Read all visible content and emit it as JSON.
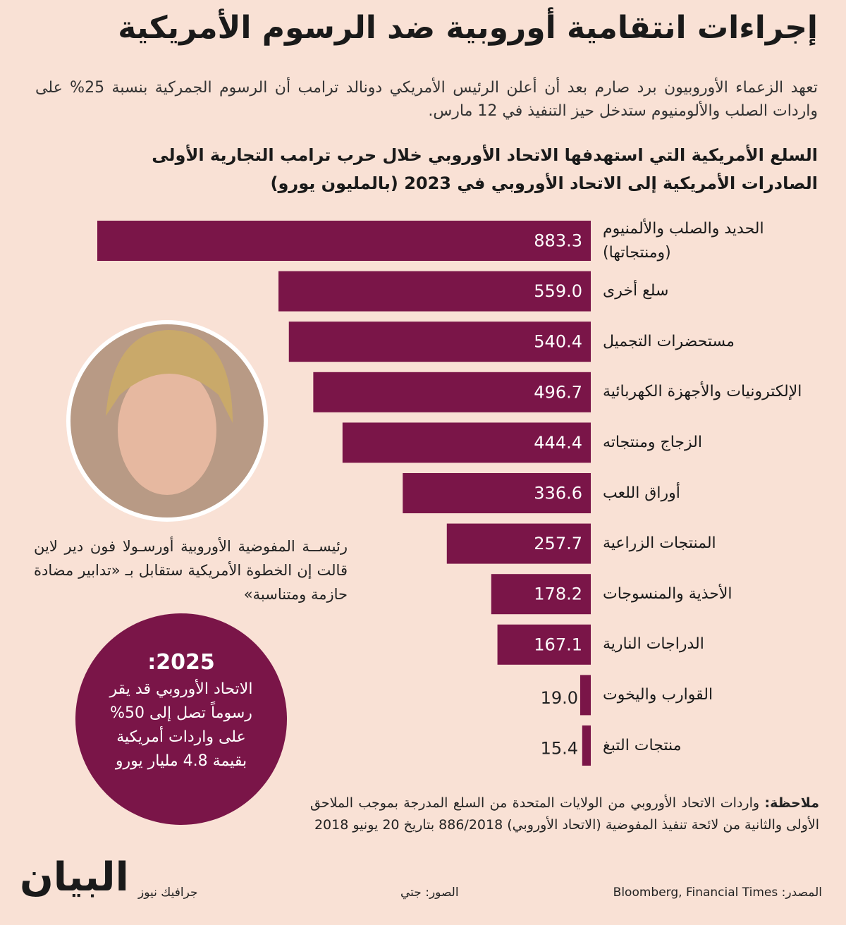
{
  "header": {
    "title": "إجراءات انتقامية أوروبية ضد الرسوم الأمريكية",
    "intro": "تعهد الزعماء الأوروبيون برد صارم بعد أن أعلن الرئيس الأمريكي دونالد ترامب أن الرسوم الجمركية بنسبة 25% على واردات الصلب والألومنيوم ستدخل حيز التنفيذ في 12 مارس."
  },
  "chart_data": {
    "type": "bar",
    "orientation": "horizontal",
    "title": "السلع الأمريكية التي استهدفها الاتحاد الأوروبي خلال حرب ترامب التجارية الأولى",
    "subtitle": "الصادرات الأمريكية إلى الاتحاد الأوروبي في 2023 (بالمليون يورو)",
    "categories": [
      "الحديد والصلب والألمنيوم (ومنتجاتها)",
      "سلع أخرى",
      "مستحضرات التجميل",
      "الإلكترونيات والأجهزة الكهربائية",
      "الزجاج ومنتجاته",
      "أوراق اللعب",
      "المنتجات الزراعية",
      "الأحذية والمنسوجات",
      "الدراجات النارية",
      "القوارب واليخوت",
      "منتجات التبغ"
    ],
    "values": [
      883.3,
      559.0,
      540.4,
      496.7,
      444.4,
      336.6,
      257.7,
      178.2,
      167.1,
      19.0,
      15.4
    ],
    "value_labels": [
      "883.3",
      "559.0",
      "540.4",
      "496.7",
      "444.4",
      "336.6",
      "257.7",
      "178.2",
      "167.1",
      "19.0",
      "15.4"
    ],
    "color": "#7a1548"
  },
  "photo_caption": "رئيســة المفوضية الأوروبية أورسـولا فون دير لاين قالت إن الخطوة الأمريكية ستقابل بـ «تدابير مضادة حازمة ومتناسبة»",
  "callout": {
    "title": "2025:",
    "text": "الاتحاد الأوروبي قد يقر رسوماً تصل إلى 50% على واردات أمريكية بقيمة 4.8 مليار يورو"
  },
  "note": {
    "label": "ملاحظة:",
    "text": "واردات الاتحاد الأوروبي من الولايات المتحدة من السلع المدرجة بموجب الملاحق الأولى والثانية من لائحة تنفيذ المفوضية (الاتحاد الأوروبي) 886/2018 بتاريخ 20 يونيو 2018"
  },
  "footer": {
    "source_label": "المصدر:",
    "source": "Bloomberg, Financial Times",
    "photos_label": "الصور:",
    "photos": "جتي",
    "credit": "جرافيك نيوز",
    "logo": "البيان"
  }
}
